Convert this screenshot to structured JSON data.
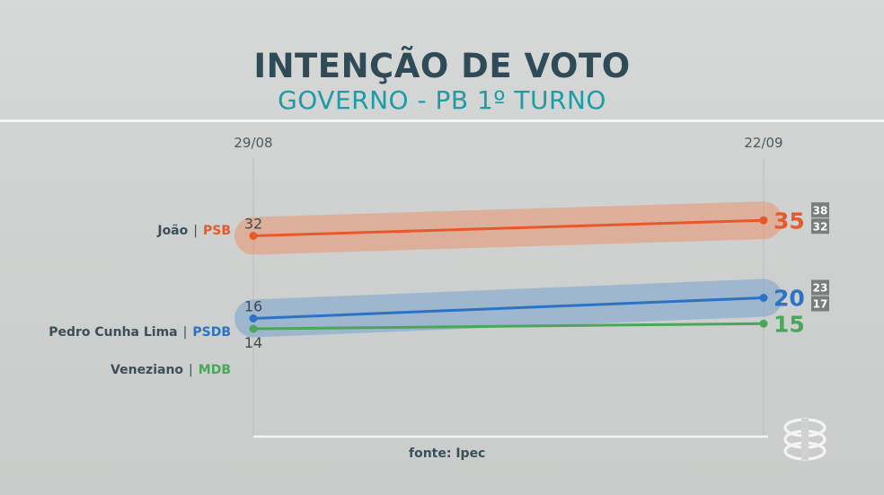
{
  "header": {
    "title": "INTENÇÃO DE VOTO",
    "subtitle": "GOVERNO - PB 1º TURNO"
  },
  "candidates": [
    {
      "name": "João",
      "party": "PSB",
      "party_color": "#e8582a"
    },
    {
      "name": "Pedro Cunha Lima",
      "party": "PSDB",
      "party_color": "#2b73c4"
    },
    {
      "name": "Veneziano",
      "party": "MDB",
      "party_color": "#4aa65a"
    }
  ],
  "source": "fonte: Ipec",
  "chart_data": {
    "type": "line",
    "title": "INTENÇÃO DE VOTO",
    "subtitle": "GOVERNO - PB 1º TURNO",
    "x": [
      "29/08",
      "22/09"
    ],
    "ylim": [
      0,
      50
    ],
    "grid": false,
    "series": [
      {
        "name": "João | PSB",
        "values": [
          32,
          35
        ],
        "color": "#e8582a",
        "band_color": "#e89a7a",
        "margin_range": [
          32,
          38
        ]
      },
      {
        "name": "Pedro Cunha Lima | PSDB",
        "values": [
          16,
          20
        ],
        "color": "#2b73c4",
        "band_color": "#7fa6cf",
        "margin_range": [
          17,
          23
        ]
      },
      {
        "name": "Veneziano | MDB",
        "values": [
          14,
          15
        ],
        "color": "#4aa65a",
        "band_color": null,
        "margin_range": null
      }
    ]
  }
}
